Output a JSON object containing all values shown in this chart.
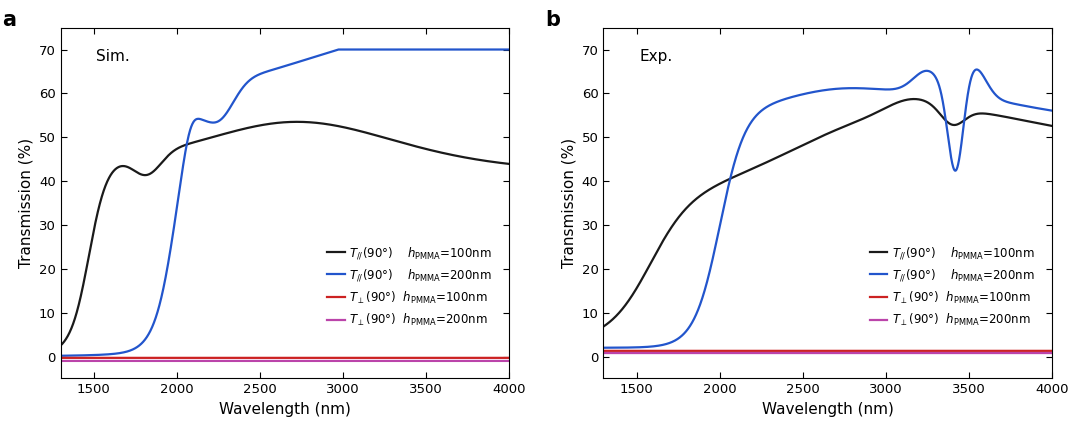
{
  "panel_a_label": "a",
  "panel_b_label": "b",
  "panel_a_title": "Sim.",
  "panel_b_title": "Exp.",
  "xlabel": "Wavelength (nm)",
  "ylabel": "Transmission (%)",
  "xlim": [
    1300,
    4000
  ],
  "ylim": [
    -5,
    75
  ],
  "yticks": [
    0,
    10,
    20,
    30,
    40,
    50,
    60,
    70
  ],
  "xticks": [
    1500,
    2000,
    2500,
    3000,
    3500,
    4000
  ],
  "color_black": "#1a1a1a",
  "color_blue": "#2255cc",
  "color_red": "#cc2222",
  "color_magenta": "#bb44aa",
  "lw": 1.6
}
